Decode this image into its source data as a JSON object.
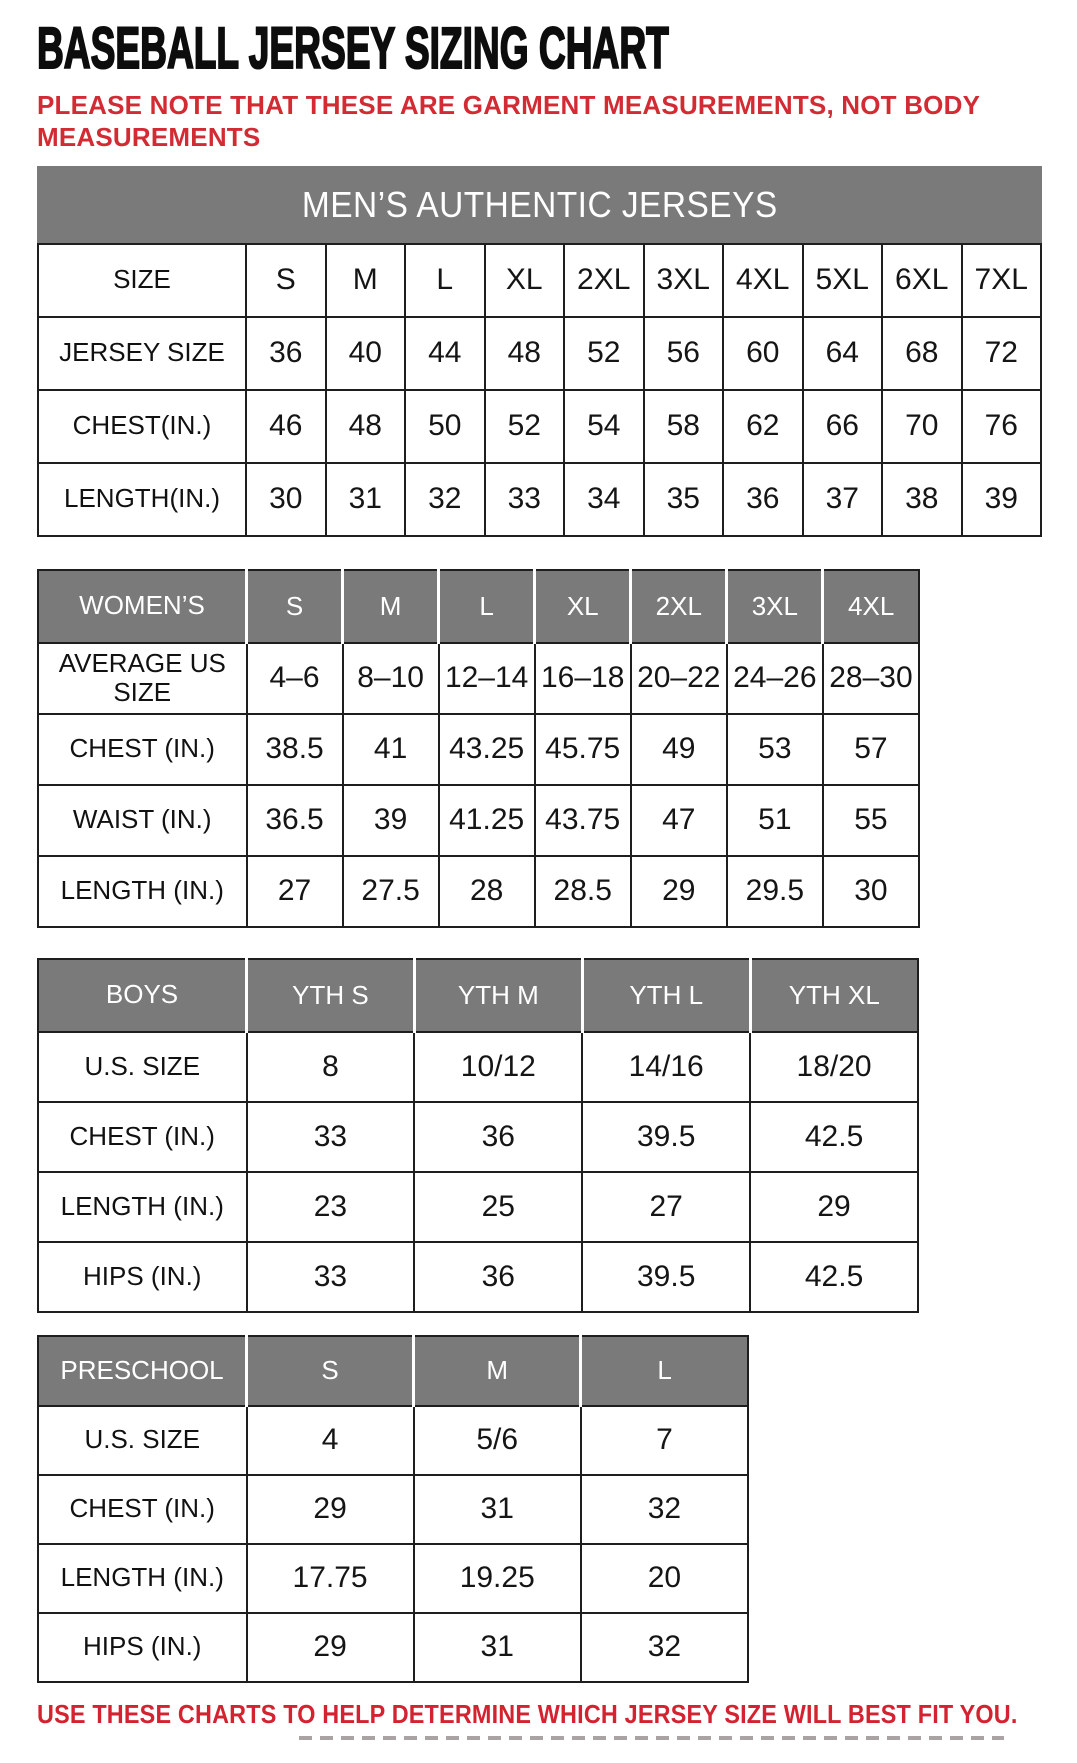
{
  "page": {
    "title": "BASEBALL JERSEY SIZING CHART",
    "note": "PLEASE NOTE THAT THESE ARE GARMENT MEASUREMENTS, NOT BODY MEASUREMENTS",
    "footer": "USE THESE CHARTS TO HELP DETERMINE WHICH JERSEY SIZE WILL BEST FIT YOU."
  },
  "colors": {
    "accent_red": "#d32b33",
    "header_gray": "#7a7a7a",
    "border_dark": "#1e1e1e"
  },
  "tables": {
    "mens": {
      "banner": "MEN’S AUTHENTIC JERSEYS",
      "rows": [
        {
          "label": "SIZE",
          "cells": [
            "S",
            "M",
            "L",
            "XL",
            "2XL",
            "3XL",
            "4XL",
            "5XL",
            "6XL",
            "7XL"
          ]
        },
        {
          "label": "JERSEY SIZE",
          "cells": [
            "36",
            "40",
            "44",
            "48",
            "52",
            "56",
            "60",
            "64",
            "68",
            "72"
          ]
        },
        {
          "label": "CHEST(IN.)",
          "cells": [
            "46",
            "48",
            "50",
            "52",
            "54",
            "58",
            "62",
            "66",
            "70",
            "76"
          ]
        },
        {
          "label": "LENGTH(IN.)",
          "cells": [
            "30",
            "31",
            "32",
            "33",
            "34",
            "35",
            "36",
            "37",
            "38",
            "39"
          ]
        }
      ]
    },
    "womens": {
      "header": {
        "label": "WOMEN’S",
        "cells": [
          "S",
          "M",
          "L",
          "XL",
          "2XL",
          "3XL",
          "4XL"
        ]
      },
      "rows": [
        {
          "label": "AVERAGE US SIZE",
          "cells": [
            "4–6",
            "8–10",
            "12–14",
            "16–18",
            "20–22",
            "24–26",
            "28–30"
          ]
        },
        {
          "label": "CHEST (IN.)",
          "cells": [
            "38.5",
            "41",
            "43.25",
            "45.75",
            "49",
            "53",
            "57"
          ]
        },
        {
          "label": "WAIST (IN.)",
          "cells": [
            "36.5",
            "39",
            "41.25",
            "43.75",
            "47",
            "51",
            "55"
          ]
        },
        {
          "label": "LENGTH (IN.)",
          "cells": [
            "27",
            "27.5",
            "28",
            "28.5",
            "29",
            "29.5",
            "30"
          ]
        }
      ]
    },
    "boys": {
      "header": {
        "label": "BOYS",
        "cells": [
          "YTH S",
          "YTH M",
          "YTH L",
          "YTH XL"
        ]
      },
      "rows": [
        {
          "label": "U.S. SIZE",
          "cells": [
            "8",
            "10/12",
            "14/16",
            "18/20"
          ]
        },
        {
          "label": "CHEST (IN.)",
          "cells": [
            "33",
            "36",
            "39.5",
            "42.5"
          ]
        },
        {
          "label": "LENGTH (IN.)",
          "cells": [
            "23",
            "25",
            "27",
            "29"
          ]
        },
        {
          "label": "HIPS (IN.)",
          "cells": [
            "33",
            "36",
            "39.5",
            "42.5"
          ]
        }
      ]
    },
    "preschool": {
      "header": {
        "label": "PRESCHOOL",
        "cells": [
          "S",
          "M",
          "L"
        ]
      },
      "rows": [
        {
          "label": "U.S. SIZE",
          "cells": [
            "4",
            "5/6",
            "7"
          ]
        },
        {
          "label": "CHEST (IN.)",
          "cells": [
            "29",
            "31",
            "32"
          ]
        },
        {
          "label": "LENGTH (IN.)",
          "cells": [
            "17.75",
            "19.25",
            "20"
          ]
        },
        {
          "label": "HIPS (IN.)",
          "cells": [
            "29",
            "31",
            "32"
          ]
        }
      ]
    }
  }
}
